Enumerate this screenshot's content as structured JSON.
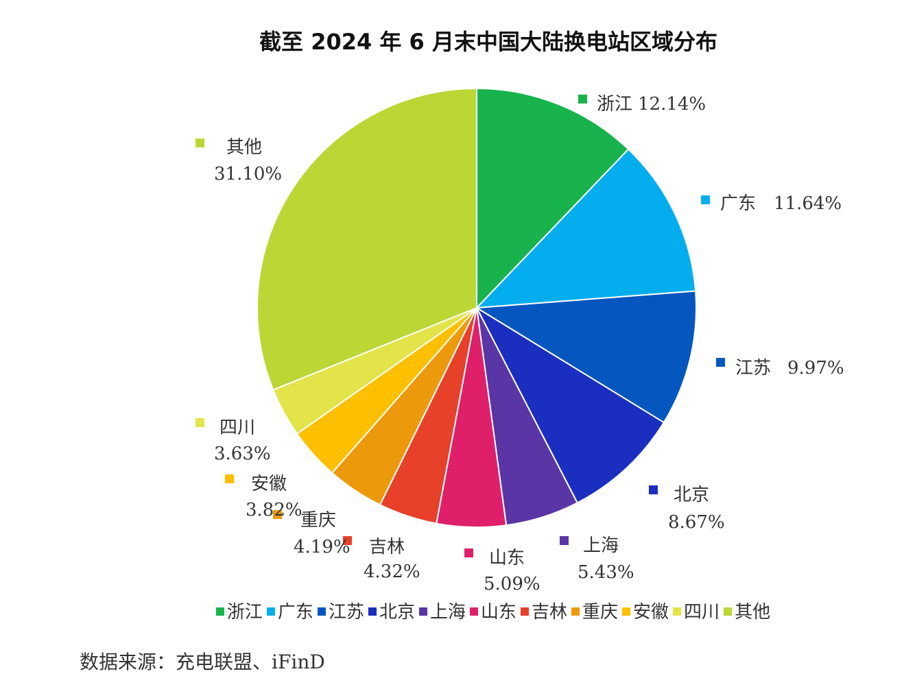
{
  "chart_data": {
    "type": "pie",
    "title": "截至 2024 年 6 月末中国大陆换电站区域分布",
    "slices": [
      {
        "label": "浙江",
        "value": 12.14,
        "value_label": "12.14%",
        "color": "#18b34c"
      },
      {
        "label": "广东",
        "value": 11.64,
        "value_label": "11.64%",
        "color": "#04aeee"
      },
      {
        "label": "江苏",
        "value": 9.97,
        "value_label": "9.97%",
        "color": "#0557bf"
      },
      {
        "label": "北京",
        "value": 8.67,
        "value_label": "8.67%",
        "color": "#1a2fbf"
      },
      {
        "label": "上海",
        "value": 5.43,
        "value_label": "5.43%",
        "color": "#5a35a5"
      },
      {
        "label": "山东",
        "value": 5.09,
        "value_label": "5.09%",
        "color": "#e01f6a"
      },
      {
        "label": "吉林",
        "value": 4.32,
        "value_label": "4.32%",
        "color": "#e8412a"
      },
      {
        "label": "重庆",
        "value": 4.19,
        "value_label": "4.19%",
        "color": "#ec9a0c"
      },
      {
        "label": "安徽",
        "value": 3.82,
        "value_label": "3.82%",
        "color": "#fdc000"
      },
      {
        "label": "四川",
        "value": 3.63,
        "value_label": "3.63%",
        "color": "#e3e44a"
      },
      {
        "label": "其他",
        "value": 31.1,
        "value_label": "31.10%",
        "color": "#bcd635"
      }
    ],
    "legend_position": "bottom"
  },
  "source": "数据来源：充电联盟、iFinD"
}
